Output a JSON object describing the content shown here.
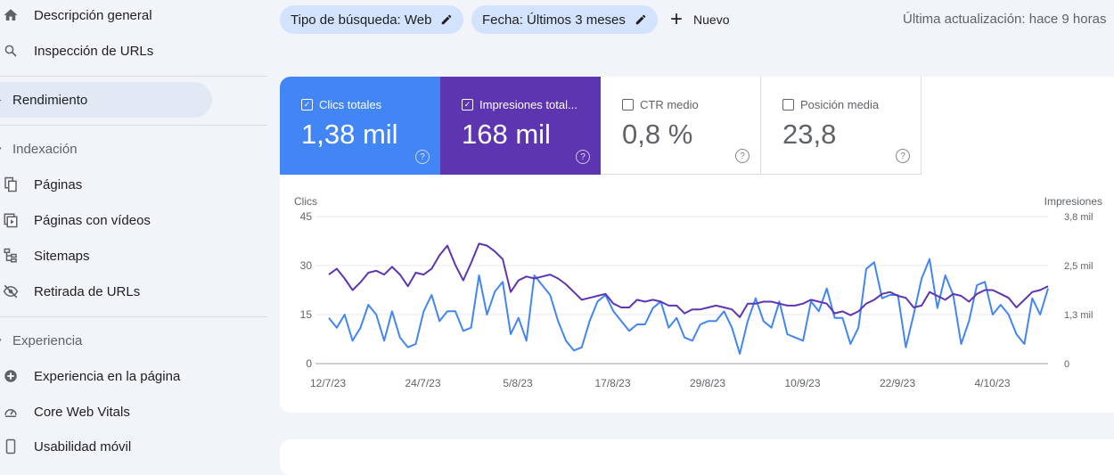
{
  "sidebar": {
    "items": [
      {
        "label": "Descripción general",
        "icon": "home-icon"
      },
      {
        "label": "Inspección de URLs",
        "icon": "search-icon"
      },
      {
        "label": "Rendimiento",
        "icon": "performance-icon"
      },
      {
        "label": "Indexación",
        "icon": "caret-down-icon"
      },
      {
        "label": "Páginas",
        "icon": "pages-icon"
      },
      {
        "label": "Páginas con vídeos",
        "icon": "video-pages-icon"
      },
      {
        "label": "Sitemaps",
        "icon": "sitemap-icon"
      },
      {
        "label": "Retirada de URLs",
        "icon": "visibility-off-icon"
      },
      {
        "label": "Experiencia",
        "icon": "caret-down-icon"
      },
      {
        "label": "Experiencia en la página",
        "icon": "plus-circle-icon"
      },
      {
        "label": "Core Web Vitals",
        "icon": "speedometer-icon"
      },
      {
        "label": "Usabilidad móvil",
        "icon": "phone-icon"
      }
    ]
  },
  "filters": {
    "search_type": "Tipo de búsqueda: Web",
    "date": "Fecha: Últimos 3 meses",
    "new_label": "Nuevo",
    "last_update": "Última actualización: hace 9 horas"
  },
  "metrics": {
    "clicks": {
      "label": "Clics totales",
      "value": "1,38 mil",
      "checked": true
    },
    "impressions": {
      "label": "Impresiones total...",
      "value": "168 mil",
      "checked": true
    },
    "ctr": {
      "label": "CTR medio",
      "value": "0,8 %",
      "checked": false
    },
    "position": {
      "label": "Posición media",
      "value": "23,8",
      "checked": false
    }
  },
  "colors": {
    "clicks": "#4285f4",
    "impressions": "#5e35b1",
    "accent": "#d3e3fd"
  },
  "chart_data": {
    "type": "line",
    "y_left_label": "Clics",
    "y_right_label": "Impresiones",
    "y_left_ticks": [
      "0",
      "15",
      "30",
      "45"
    ],
    "y_right_ticks": [
      "0",
      "1,3 mil",
      "2,5 mil",
      "3,8 mil"
    ],
    "ylim_left": [
      0,
      45
    ],
    "ylim_right": [
      0,
      3800
    ],
    "x_ticks": [
      "12/7/23",
      "24/7/23",
      "5/8/23",
      "17/8/23",
      "29/8/23",
      "10/9/23",
      "22/9/23",
      "4/10/23"
    ],
    "grid": true,
    "series": [
      {
        "name": "Clics",
        "color": "#4285f4",
        "values": [
          14,
          11,
          15,
          7,
          11,
          18,
          15,
          7,
          16,
          8,
          5,
          6,
          16,
          21,
          13,
          16,
          16,
          10,
          11,
          27,
          15,
          22,
          25,
          9,
          14,
          7,
          27,
          24,
          21,
          13,
          7,
          4,
          5,
          13,
          19,
          21,
          16,
          13,
          10,
          12,
          12,
          17,
          19,
          11,
          14,
          8,
          7,
          12,
          13,
          13,
          16,
          11,
          3,
          13,
          20,
          13,
          11,
          19,
          9,
          8,
          7,
          19,
          16,
          23,
          14,
          14,
          6,
          11,
          29,
          31,
          20,
          21,
          21,
          5,
          15,
          26,
          32,
          17,
          27,
          21,
          6,
          13,
          24,
          25,
          15,
          18,
          15,
          9,
          6,
          20,
          15,
          23
        ]
      },
      {
        "name": "Impresiones",
        "color": "#5e35b1",
        "values": [
          2300,
          2450,
          2200,
          1900,
          2100,
          2350,
          2400,
          2300,
          2500,
          2300,
          2000,
          2350,
          2300,
          2450,
          2800,
          3050,
          2550,
          2150,
          2600,
          3100,
          3050,
          2900,
          2700,
          1850,
          2150,
          2250,
          2200,
          2250,
          2300,
          2200,
          2050,
          1850,
          1650,
          1700,
          1750,
          1800,
          1550,
          1450,
          1450,
          1650,
          1600,
          1650,
          1600,
          1500,
          1500,
          1300,
          1400,
          1400,
          1450,
          1500,
          1450,
          1400,
          1200,
          1550,
          1550,
          1600,
          1600,
          1550,
          1500,
          1500,
          1550,
          1650,
          1600,
          1550,
          1300,
          1350,
          1250,
          1350,
          1550,
          1650,
          1800,
          1850,
          1750,
          1700,
          1450,
          1500,
          1850,
          1750,
          1650,
          1800,
          1750,
          1600,
          1800,
          1900,
          1900,
          1800,
          1700,
          1450,
          1650,
          1850,
          1900,
          2000
        ]
      }
    ]
  }
}
